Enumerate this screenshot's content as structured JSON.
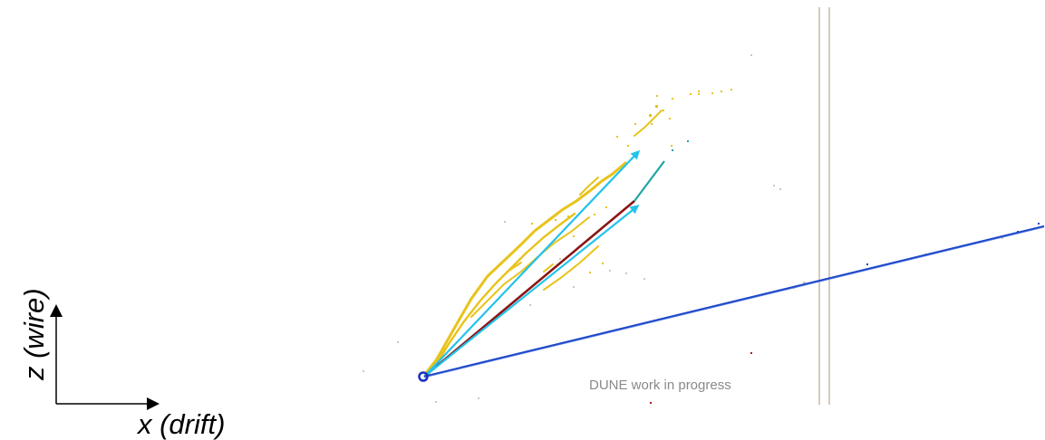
{
  "axes": {
    "x_label": "x (drift)",
    "z_label": "z (wire)"
  },
  "watermark": {
    "text": "DUNE work in progress"
  },
  "colors": {
    "beam_track": "#1c46c8",
    "shower_hits": "#e8c31a",
    "reco_arrows": "#22c2ec",
    "central_track": "#8b1414",
    "vertex": "#1a2fbf",
    "boundary_lines": "#d7cbb9",
    "stray_hits": "#c8c8c8"
  }
}
